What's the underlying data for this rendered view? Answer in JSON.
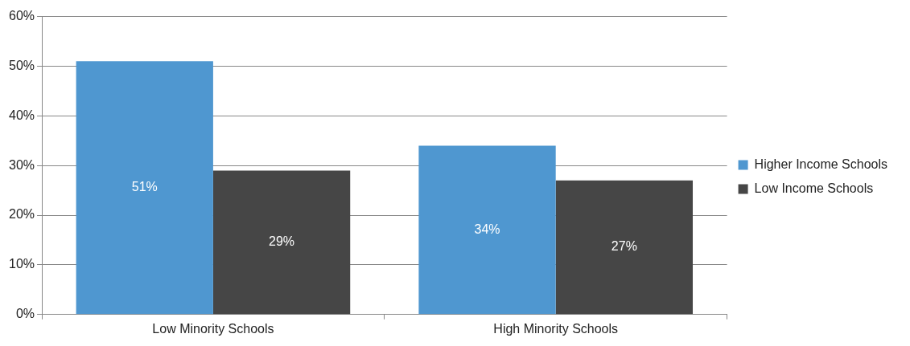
{
  "chart_data": {
    "type": "bar",
    "categories": [
      "Low Minority Schools",
      "High Minority Schools"
    ],
    "series": [
      {
        "name": "Higher Income Schools",
        "color": "#4f97d0",
        "values": [
          51,
          34
        ],
        "value_labels": [
          "51%",
          "34%"
        ]
      },
      {
        "name": "Low Income Schools",
        "color": "#464646",
        "values": [
          29,
          27
        ],
        "value_labels": [
          "29%",
          "27%"
        ]
      }
    ],
    "ylim": [
      0,
      60
    ],
    "yticks": [
      {
        "value": 0,
        "label": "0%"
      },
      {
        "value": 10,
        "label": "10%"
      },
      {
        "value": 20,
        "label": "20%"
      },
      {
        "value": 30,
        "label": "30%"
      },
      {
        "value": 40,
        "label": "40%"
      },
      {
        "value": 50,
        "label": "50%"
      },
      {
        "value": 60,
        "label": "60%"
      }
    ],
    "grid": "y",
    "legend": "right"
  }
}
